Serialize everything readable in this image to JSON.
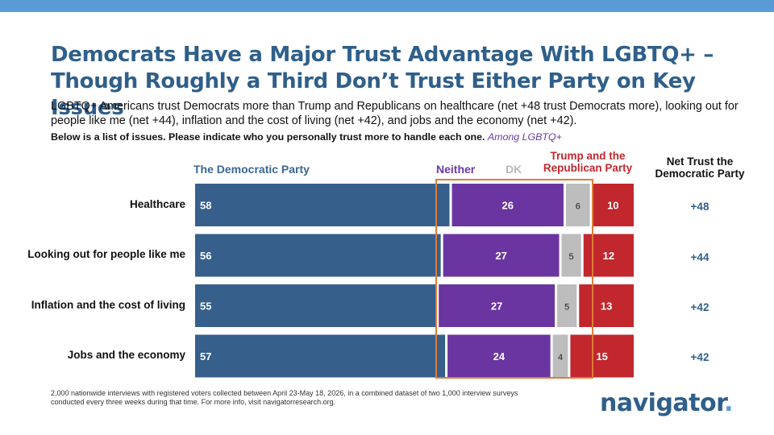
{
  "title": "Democrats Have a Major Trust Advantage With LGBTQ+ – Though Roughly a Third Don’t Trust Either Party on Key Issues",
  "subtitle": "LGBTQ+ Americans trust Democrats more than Trump and Republicans on healthcare (net +48 trust Democrats more), looking out for people like me (net +44), inflation and the cost of living (net +42), and jobs and the economy (net +42).",
  "question": "Below is a list of issues. Please indicate who you personally trust more to handle each one.",
  "question_subgroup": "Among LGBTQ+",
  "footnote": "2,000 nationwide interviews with registered voters collected between April 23-May 18, 2026, in a combined dataset of two 1,000 interview surveys conducted every three weeks during that time. For more info, visit navigatorresearch.org.",
  "logo": {
    "text": "navigator",
    "dot": "."
  },
  "colors": {
    "democratic": "#365f8c",
    "neither": "#6a35a0",
    "dk": "#bdbdbd",
    "republican": "#c1272d",
    "highlight_box": "#e07b39",
    "accent": "#2f5f8a"
  },
  "chart_data": {
    "type": "bar",
    "orientation": "horizontal",
    "stacked": true,
    "categories": [
      "Healthcare",
      "Looking out for people like me",
      "Inflation and the cost of living",
      "Jobs and the economy"
    ],
    "series": [
      {
        "name": "The Democratic Party",
        "values": [
          58,
          56,
          55,
          57
        ]
      },
      {
        "name": "Neither",
        "values": [
          26,
          27,
          27,
          24
        ]
      },
      {
        "name": "DK",
        "values": [
          6,
          5,
          5,
          4
        ]
      },
      {
        "name": "Trump and the Republican Party",
        "values": [
          10,
          12,
          13,
          15
        ]
      }
    ],
    "net_trust_label": "Net Trust the Democratic Party",
    "net_trust": [
      "+48",
      "+44",
      "+42",
      "+42"
    ],
    "highlight": "Neither and DK columns outlined",
    "legend_placement": "top"
  }
}
